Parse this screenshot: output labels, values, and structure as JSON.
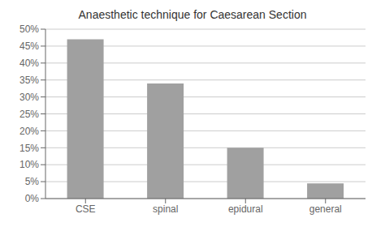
{
  "chart_data": {
    "type": "bar",
    "title": "Anaesthetic technique for Caesarean Section",
    "categories": [
      "CSE",
      "spinal",
      "epidural",
      "general"
    ],
    "values": [
      47,
      34,
      15,
      4.5
    ],
    "color": "#a0a0a0",
    "ylim": [
      0,
      50
    ],
    "yticks": [
      {
        "value": 0,
        "label": "0%"
      },
      {
        "value": 5,
        "label": "5%"
      },
      {
        "value": 10,
        "label": "10%"
      },
      {
        "value": 15,
        "label": "15%"
      },
      {
        "value": 20,
        "label": "20%"
      },
      {
        "value": 25,
        "label": "25%"
      },
      {
        "value": 30,
        "label": "30%"
      },
      {
        "value": 35,
        "label": "35%"
      },
      {
        "value": 40,
        "label": "40%"
      },
      {
        "value": 45,
        "label": "45%"
      },
      {
        "value": 50,
        "label": "50%"
      }
    ],
    "grid": true
  }
}
